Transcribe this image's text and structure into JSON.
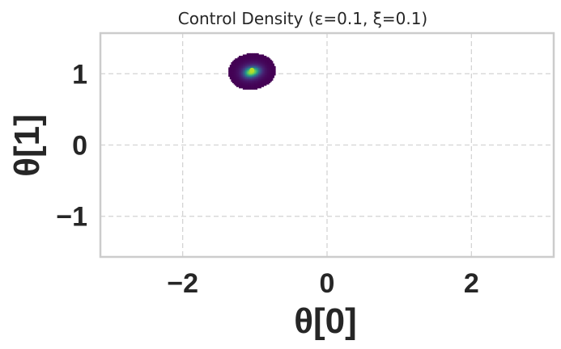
{
  "chart_data": {
    "type": "heatmap",
    "title": "Control Density (ε=0.1, ξ=0.1)",
    "xlabel": "θ[0]",
    "ylabel": "θ[1]",
    "xlim": [
      -3.14,
      3.14
    ],
    "ylim": [
      -1.57,
      1.57
    ],
    "x_ticks": [
      -2,
      0,
      2
    ],
    "y_ticks": [
      -1,
      0,
      1
    ],
    "x_tick_labels": [
      "−2",
      "0",
      "2"
    ],
    "y_tick_labels": [
      "−1",
      "0",
      "1"
    ],
    "grid": true,
    "colormap": "viridis",
    "density_blobs": [
      {
        "x": -1.04,
        "y": 1.04,
        "sigma_x": 0.14,
        "sigma_y": 0.11,
        "weight": 1.0
      },
      {
        "x": -1.12,
        "y": 0.99,
        "sigma_x": 0.1,
        "sigma_y": 0.09,
        "weight": 0.45
      },
      {
        "x": -0.93,
        "y": 1.06,
        "sigma_x": 0.09,
        "sigma_y": 0.08,
        "weight": 0.35
      }
    ],
    "peak": {
      "x": -1.04,
      "y": 1.05
    }
  },
  "colors": {
    "text": "#262626",
    "frame": "#cccccc",
    "grid": "#d4d4d4",
    "density_low": "#440154",
    "density_mid": "#3b528b",
    "density_high": "#21918c",
    "density_peak": "#b5de2b"
  }
}
